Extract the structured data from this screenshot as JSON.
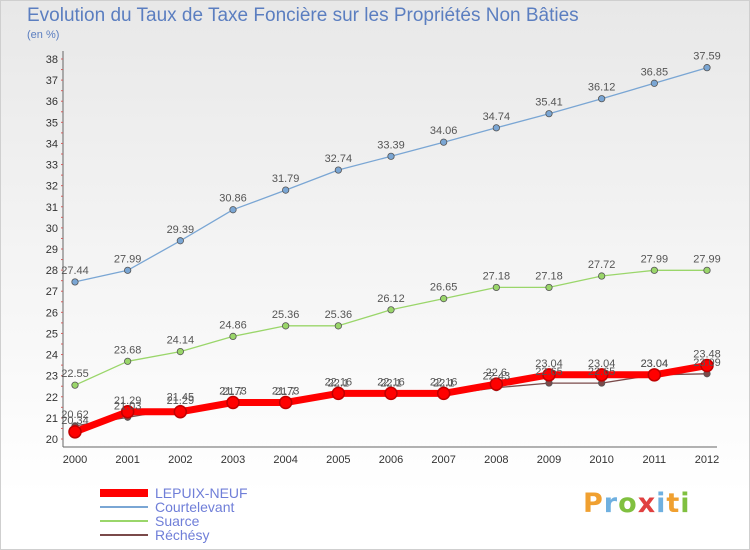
{
  "chart_data": {
    "type": "line",
    "title": "Evolution du Taux de Taxe Foncière sur les Propriétés Non Bâties",
    "unit": "(en %)",
    "x": [
      "2000",
      "2001",
      "2002",
      "2003",
      "2004",
      "2005",
      "2006",
      "2007",
      "2008",
      "2009",
      "2010",
      "2011",
      "2012"
    ],
    "ylim": [
      20,
      38
    ],
    "yticks": [
      20,
      21,
      22,
      23,
      24,
      25,
      26,
      27,
      28,
      29,
      30,
      31,
      32,
      33,
      34,
      35,
      36,
      37,
      38
    ],
    "grid": false,
    "legend_position": "bottom-left",
    "series": [
      {
        "name": "LEPUIX-NEUF",
        "color": "#ff0000",
        "values": [
          20.34,
          21.29,
          21.29,
          21.73,
          21.73,
          22.16,
          22.16,
          22.16,
          22.6,
          23.04,
          23.04,
          23.04,
          23.48
        ],
        "labels": [
          "20.34",
          "21.29",
          "21.29",
          "21.73",
          "21.73",
          "22.16",
          "22.16",
          "22.16",
          "22.6",
          "23.04",
          "23.04",
          "23.04",
          "23.48"
        ]
      },
      {
        "name": "Courtelevant",
        "color": "#7aa6d4",
        "values": [
          27.44,
          27.99,
          29.39,
          30.86,
          31.79,
          32.74,
          33.39,
          34.06,
          34.74,
          35.41,
          36.12,
          36.85,
          37.59
        ],
        "labels": [
          "27.44",
          "27.99",
          "29.39",
          "30.86",
          "31.79",
          "32.74",
          "33.39",
          "34.06",
          "34.74",
          "35.41",
          "36.12",
          "36.85",
          "37.59"
        ]
      },
      {
        "name": "Suarce",
        "color": "#9ad66a",
        "values": [
          22.55,
          23.68,
          24.14,
          24.86,
          25.36,
          25.36,
          26.12,
          26.65,
          27.18,
          27.18,
          27.72,
          27.99,
          27.99
        ],
        "labels": [
          "22.55",
          "23.68",
          "24.14",
          "24.86",
          "25.36",
          "25.36",
          "26.12",
          "26.65",
          "27.18",
          "27.18",
          "27.72",
          "27.99",
          "27.99"
        ]
      },
      {
        "name": "Réchésy",
        "color": "#7a4a4a",
        "values": [
          20.62,
          21.03,
          21.45,
          21.7,
          21.7,
          22.1,
          22.1,
          22.1,
          22.43,
          22.65,
          22.65,
          23.04,
          23.09
        ],
        "labels": [
          "20.62",
          "21.03",
          "21.45",
          "21.7",
          "21.7",
          "22.1",
          "22.1",
          "22.1",
          "22.43",
          "22.65",
          "22.65",
          "23.04",
          "23.09"
        ]
      }
    ]
  },
  "logo": {
    "letters": [
      {
        "ch": "P",
        "color": "#f0a030"
      },
      {
        "ch": "r",
        "color": "#6fb0e0"
      },
      {
        "ch": "o",
        "color": "#80c040"
      },
      {
        "ch": "x",
        "color": "#e04040"
      },
      {
        "ch": "i",
        "color": "#6fb0e0"
      },
      {
        "ch": "t",
        "color": "#f0a030"
      },
      {
        "ch": "i",
        "color": "#80c040"
      }
    ]
  }
}
